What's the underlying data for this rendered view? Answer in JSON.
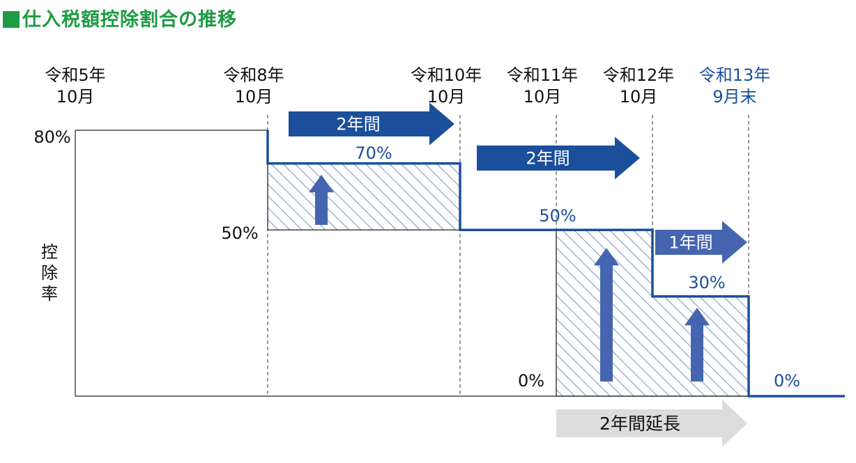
{
  "title": "仕入税額控除割合の推移",
  "colors": {
    "title": "#1e9b45",
    "new_line": "#1b4f9c",
    "old_line": "#222222",
    "arrow_dark": "#1b4f9c",
    "arrow_mid": "#4665b0",
    "arrow_gray": "#dcdcdc",
    "hatch": "#8fa4cc",
    "blue_text": "#1b4f9c"
  },
  "chart_data": {
    "type": "line",
    "subtype": "step",
    "title": "仕入税額控除割合の推移",
    "ylabel": "控除率",
    "ylim": [
      0,
      80
    ],
    "grid": false,
    "time_labels": [
      {
        "id": "r5",
        "line1": "令和5年",
        "line2": "10月",
        "color": "#111111"
      },
      {
        "id": "r8",
        "line1": "令和8年",
        "line2": "10月",
        "color": "#111111"
      },
      {
        "id": "r10",
        "line1": "令和10年",
        "line2": "10月",
        "color": "#111111"
      },
      {
        "id": "r11",
        "line1": "令和11年",
        "line2": "10月",
        "color": "#111111"
      },
      {
        "id": "r12",
        "line1": "令和12年",
        "line2": "10月",
        "color": "#111111"
      },
      {
        "id": "r13",
        "line1": "令和13年",
        "line2": "9月末",
        "color": "#1b4f9c"
      }
    ],
    "series": [
      {
        "key": "original",
        "steps": [
          {
            "from": "r5",
            "to": "r8",
            "value": 80
          },
          {
            "from": "r8",
            "to": "r10",
            "value": 50
          },
          {
            "from": "r10",
            "to": "r11",
            "value": 50
          },
          {
            "from": "r11",
            "to": "end",
            "value": 0
          }
        ]
      },
      {
        "key": "revised",
        "steps": [
          {
            "from": "r8",
            "to": "r10",
            "value": 70
          },
          {
            "from": "r10",
            "to": "r11",
            "value": 50
          },
          {
            "from": "r11",
            "to": "r12",
            "value": 50
          },
          {
            "from": "r12",
            "to": "r13",
            "value": 30
          },
          {
            "from": "r13",
            "to": "end",
            "value": 0
          }
        ]
      }
    ],
    "value_labels": [
      {
        "text": "80%",
        "color": "#111111"
      },
      {
        "text": "50%",
        "color": "#111111"
      },
      {
        "text": "0%",
        "color": "#111111"
      },
      {
        "text": "70%",
        "color": "#1b4f9c"
      },
      {
        "text": "50%",
        "color": "#1b4f9c"
      },
      {
        "text": "30%",
        "color": "#1b4f9c"
      },
      {
        "text": "0%",
        "color": "#1b4f9c"
      }
    ],
    "period_arrows": [
      {
        "text": "2年間",
        "from": "r8",
        "to": "r10"
      },
      {
        "text": "2年間",
        "from": "r10",
        "to": "r12"
      },
      {
        "text": "1年間",
        "from": "r12",
        "to": "r13"
      },
      {
        "text": "2年間延長",
        "from": "r11",
        "to": "r13"
      }
    ]
  }
}
